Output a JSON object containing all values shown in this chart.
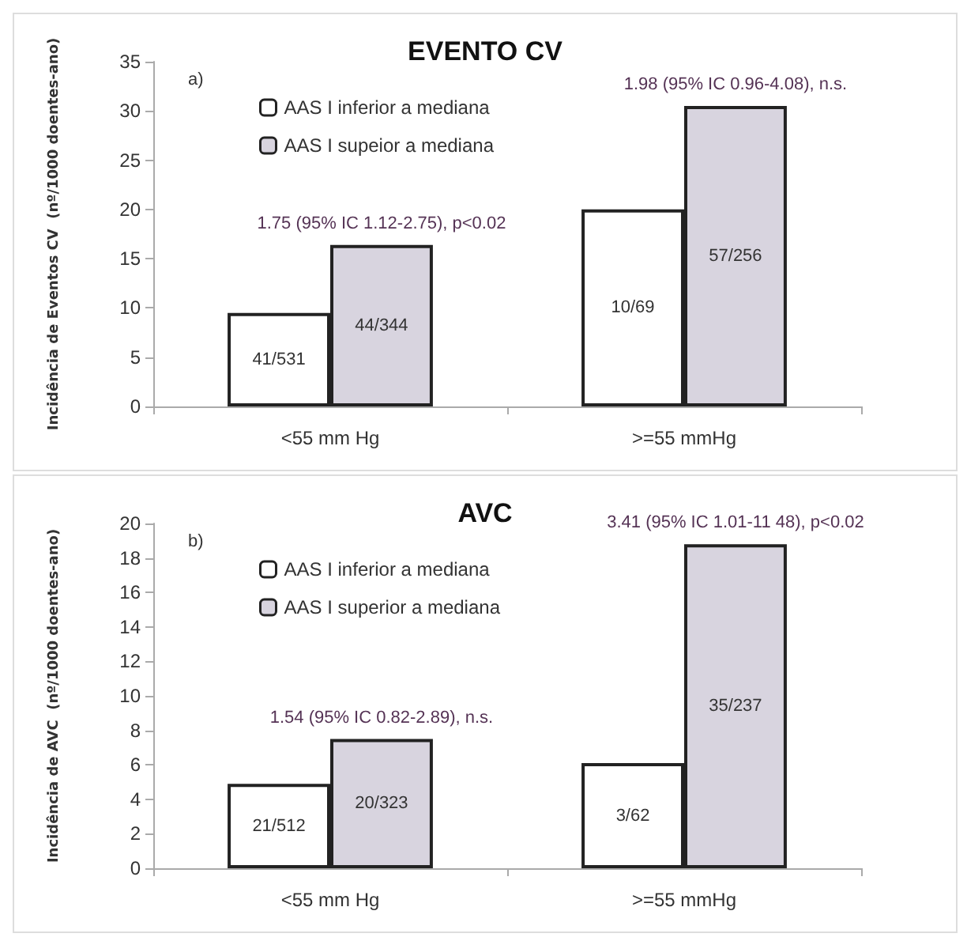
{
  "chart_data": [
    {
      "type": "bar",
      "title": "EVENTO CV",
      "ylabel": "Incidência de Eventos CV  (nº/1000 doentes-ano)",
      "categories": [
        "<55 mm Hg",
        ">=55 mmHg"
      ],
      "series": [
        {
          "name": "AAS I inferior a mediana",
          "color": "#ffffff",
          "values": [
            9.5,
            20
          ],
          "value_labels": [
            "41/531",
            "10/69"
          ]
        },
        {
          "name": "AAS I supeior a mediana",
          "color": "#d8d4df",
          "values": [
            16.4,
            30.5
          ],
          "value_labels": [
            "44/344",
            "57/256"
          ]
        }
      ],
      "ylim": [
        0,
        35
      ],
      "yticks": [
        0,
        5,
        10,
        15,
        20,
        25,
        30,
        35
      ],
      "grid": false,
      "legend": "top left",
      "annotations": [
        "a)",
        "1.75 (95% IC 1.12-2.75), p<0.02",
        "1.98 (95% IC 0.96-4.08), n.s."
      ]
    },
    {
      "type": "bar",
      "title": "AVC",
      "ylabel": "Incidência de AVC  (nº/1000 doentes-ano)",
      "categories": [
        "<55 mm Hg",
        ">=55 mmHg"
      ],
      "series": [
        {
          "name": "AAS I inferior a mediana",
          "color": "#ffffff",
          "values": [
            4.9,
            6.1
          ],
          "value_labels": [
            "21/512",
            "3/62"
          ]
        },
        {
          "name": "AAS I superior a mediana",
          "color": "#d8d4df",
          "values": [
            7.5,
            18.8
          ],
          "value_labels": [
            "20/323",
            "35/237"
          ]
        }
      ],
      "ylim": [
        0,
        20
      ],
      "yticks": [
        0,
        2,
        4,
        6,
        8,
        10,
        12,
        14,
        16,
        18,
        20
      ],
      "grid": false,
      "legend": "top left",
      "annotations": [
        "b)",
        "1.54 (95% IC 0.82-2.89), n.s.",
        "3.41 (95% IC 1.01-11 48), p<0.02"
      ]
    }
  ]
}
